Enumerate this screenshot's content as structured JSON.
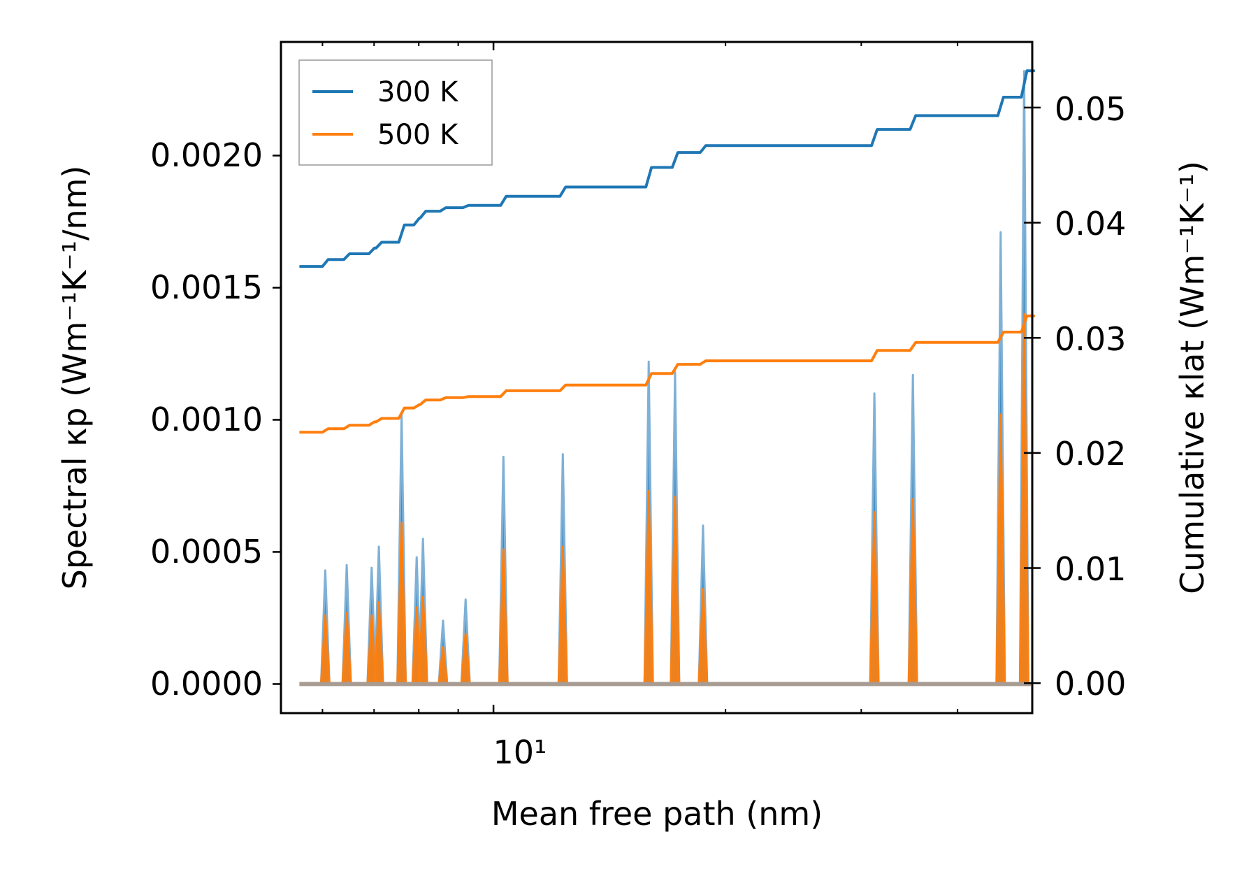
{
  "chart_data": {
    "type": "line",
    "title": "",
    "xlabel": "Mean free path (nm)",
    "ylabel_left": "Spectral κp (Wm⁻¹K⁻¹/nm)",
    "ylabel_right": "Cumulative κlat (Wm⁻¹K⁻¹)",
    "xscale": "log",
    "xlim": [
      5.3,
      50.0
    ],
    "x_tick_labels": [
      "10¹"
    ],
    "ylim_left": [
      -0.00011,
      0.00243
    ],
    "ylim_right": [
      -0.0026,
      0.0557
    ],
    "left_ticks": [
      "0.0000",
      "0.0005",
      "0.0010",
      "0.0015",
      "0.0020"
    ],
    "right_ticks": [
      "0.00",
      "0.01",
      "0.02",
      "0.03",
      "0.04",
      "0.05"
    ],
    "legend": {
      "position": "top-left",
      "entries": [
        "300 K",
        "500 K"
      ]
    },
    "colors": {
      "300 K": "#1f77b4",
      "500 K": "#ff7f0e",
      "frame": "#000000"
    },
    "spectral_series": [
      {
        "name": "300 K",
        "peaks": [
          [
            6.05,
            0.00043
          ],
          [
            6.45,
            0.00045
          ],
          [
            6.95,
            0.00044
          ],
          [
            7.1,
            0.00052
          ],
          [
            7.6,
            0.00102
          ],
          [
            7.95,
            0.00048
          ],
          [
            8.1,
            0.00055
          ],
          [
            8.6,
            0.00024
          ],
          [
            9.2,
            0.00032
          ],
          [
            10.3,
            0.00086
          ],
          [
            12.3,
            0.00087
          ],
          [
            15.9,
            0.00122
          ],
          [
            17.2,
            0.00118
          ],
          [
            18.7,
            0.0006
          ],
          [
            31.2,
            0.0011
          ],
          [
            35.0,
            0.00117
          ],
          [
            45.5,
            0.00171
          ],
          [
            48.8,
            0.00232
          ]
        ]
      },
      {
        "name": "500 K",
        "peaks": [
          [
            6.05,
            0.00026
          ],
          [
            6.45,
            0.00027
          ],
          [
            6.95,
            0.00026
          ],
          [
            7.1,
            0.00031
          ],
          [
            7.6,
            0.00061
          ],
          [
            7.95,
            0.00029
          ],
          [
            8.1,
            0.00033
          ],
          [
            8.6,
            0.00014
          ],
          [
            9.2,
            0.00019
          ],
          [
            10.3,
            0.00051
          ],
          [
            12.3,
            0.00052
          ],
          [
            15.9,
            0.00073
          ],
          [
            17.2,
            0.00071
          ],
          [
            18.7,
            0.00036
          ],
          [
            31.2,
            0.00065
          ],
          [
            35.0,
            0.0007
          ],
          [
            45.5,
            0.00102
          ],
          [
            48.8,
            0.0014
          ]
        ]
      }
    ],
    "cumulative_series": [
      {
        "name": "300 K",
        "x": [
          5.6,
          6.05,
          6.45,
          6.95,
          7.1,
          7.6,
          7.95,
          8.1,
          8.6,
          9.2,
          10.3,
          12.3,
          15.9,
          17.2,
          18.7,
          31.2,
          35.0,
          45.5,
          48.8,
          49.8
        ],
        "y": [
          0.0362,
          0.0368,
          0.0373,
          0.0378,
          0.0383,
          0.0398,
          0.0404,
          0.041,
          0.0413,
          0.0415,
          0.0423,
          0.0431,
          0.0448,
          0.0461,
          0.0467,
          0.0481,
          0.0493,
          0.0509,
          0.0532,
          0.0532
        ]
      },
      {
        "name": "500 K",
        "x": [
          5.6,
          6.05,
          6.45,
          6.95,
          7.1,
          7.6,
          7.95,
          8.1,
          8.6,
          9.2,
          10.3,
          12.3,
          15.9,
          17.2,
          18.7,
          31.2,
          35.0,
          45.5,
          48.8,
          49.8
        ],
        "y": [
          0.0218,
          0.0221,
          0.0224,
          0.0227,
          0.023,
          0.0239,
          0.0242,
          0.0246,
          0.0248,
          0.0249,
          0.0254,
          0.0259,
          0.0269,
          0.0277,
          0.028,
          0.0289,
          0.0296,
          0.0305,
          0.0319,
          0.0319
        ]
      }
    ]
  }
}
